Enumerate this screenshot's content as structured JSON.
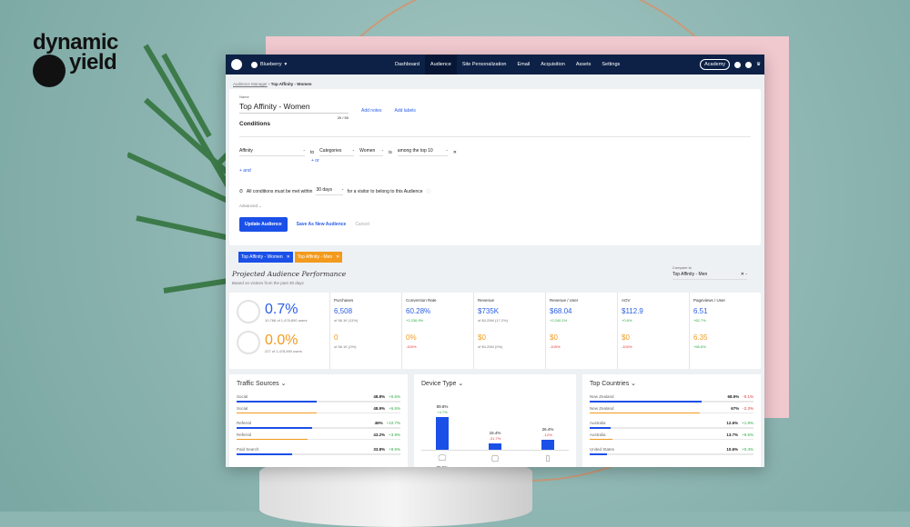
{
  "brand": {
    "logo_line1": "dynamic",
    "logo_line2": "yield"
  },
  "nav": {
    "site": "Blueberry",
    "items": [
      "Dashboard",
      "Audience",
      "Site Personalization",
      "Email",
      "Acquisition",
      "Assets",
      "Settings"
    ],
    "active": "Audience",
    "academy": "Academy"
  },
  "breadcrumb": {
    "parent": "Audience Manager",
    "current": "Top Affinity - Women"
  },
  "form": {
    "name_label": "Name",
    "name_value": "Top Affinity - Women",
    "char_count": "20 / 50",
    "add_notes": "Add notes",
    "add_labels": "Add labels",
    "conditions_title": "Conditions",
    "condition": {
      "field": "Affinity",
      "to": "to",
      "type": "Categories",
      "value": "Women",
      "is": "is",
      "operator": "among the top 10"
    },
    "or": "+ or",
    "and": "+ and",
    "timeframe_prefix": "All conditions must be met within",
    "timeframe": "30 days",
    "timeframe_suffix": "for a visitor to belong to this Audience",
    "advanced": "Advanced",
    "update": "Update Audience",
    "save_new": "Save As New Audience",
    "cancel": "Cancel"
  },
  "chips": [
    {
      "label": "Top Affinity - Women",
      "color": "#1a50e8"
    },
    {
      "label": "Top Affinity - Men",
      "color": "#f39a1d"
    }
  ],
  "performance": {
    "title": "Projected Audience Performance",
    "subtitle": "Based on visitors from the past 30 days",
    "compare_label": "Compare to",
    "compare_value": "Top Affinity - Men",
    "share": [
      {
        "pct": "0.7%",
        "users": "10,766 of 1,478,890 users"
      },
      {
        "pct": "0.0%",
        "users": "227 of 1,478,890 users"
      }
    ],
    "metrics": [
      {
        "label": "Purchases",
        "a": "6,508",
        "a_sub": "of 58.1K (11%)",
        "b": "0",
        "b_sub": "of 58.1K (0%)",
        "b_sub_color": "grey"
      },
      {
        "label": "Conversion Rate",
        "a": "60.28%",
        "a_sub": "+2,236.9%",
        "b": "0%",
        "b_sub": "-100%"
      },
      {
        "label": "Revenue",
        "a": "$735K",
        "a_sub": "of $4.25M (17.2%)",
        "b": "$0",
        "b_sub": "of $4.25M (0%)",
        "b_sub_color": "grey"
      },
      {
        "label": "Revenue / User",
        "a": "$68.04",
        "a_sub": "+2,240.1%",
        "b": "$0",
        "b_sub": "-100%"
      },
      {
        "label": "AOV",
        "a": "$112.9",
        "a_sub": "+0.6%",
        "b": "$0",
        "b_sub": "-100%"
      },
      {
        "label": "Pageviews / User",
        "a": "6.51",
        "a_sub": "+62.7%",
        "b": "6.35",
        "b_sub": "+58.8%",
        "b_sub_color": "green"
      }
    ]
  },
  "traffic": {
    "title": "Traffic Sources",
    "rows": [
      {
        "name": "Social",
        "value": "48.8%",
        "delta": "+6.5%",
        "pct": 48.8,
        "series": "a"
      },
      {
        "name": "Social",
        "value": "48.9%",
        "delta": "+6.6%",
        "pct": 48.9,
        "series": "b"
      },
      {
        "name": "Referral",
        "value": "46%",
        "delta": "+10.7%",
        "pct": 46,
        "series": "a"
      },
      {
        "name": "Referral",
        "value": "43.2%",
        "delta": "+3.9%",
        "pct": 43.2,
        "series": "b"
      },
      {
        "name": "Paid Search",
        "value": "33.8%",
        "delta": "+9.5%",
        "pct": 33.8,
        "series": "a"
      }
    ]
  },
  "device": {
    "title": "Device Type",
    "items": [
      {
        "icon": "desktop-icon",
        "value": "89.8%",
        "delta": "+4.7%",
        "delta_color": "green",
        "pct": 89.8,
        "other": "85.5%"
      },
      {
        "icon": "tablet-icon",
        "value": "16.4%",
        "delta": "-31.7%",
        "delta_color": "red",
        "pct": 16.4
      },
      {
        "icon": "mobile-icon",
        "value": "26.4%",
        "delta": "-12%",
        "delta_color": "red",
        "pct": 26.4
      }
    ]
  },
  "countries": {
    "title": "Top Countries",
    "rows": [
      {
        "name": "New Zealand",
        "value": "68.5%",
        "delta": "-0.1%",
        "pct": 68.5,
        "series": "a",
        "dc": "red"
      },
      {
        "name": "New Zealand",
        "value": "67%",
        "delta": "-2.3%",
        "pct": 67,
        "series": "b",
        "dc": "red"
      },
      {
        "name": "Australia",
        "value": "12.6%",
        "delta": "+1.9%",
        "pct": 12.6,
        "series": "a",
        "dc": "green"
      },
      {
        "name": "Australia",
        "value": "13.7%",
        "delta": "+9.5%",
        "pct": 13.7,
        "series": "b",
        "dc": "green"
      },
      {
        "name": "United States",
        "value": "10.6%",
        "delta": "+0.4%",
        "pct": 10.6,
        "series": "a",
        "dc": "green"
      }
    ]
  },
  "colors": {
    "primary": "#1a50e8",
    "secondary": "#f39a1d",
    "nav": "#0d2147",
    "positive": "#2eaa44",
    "negative": "#e03535"
  }
}
